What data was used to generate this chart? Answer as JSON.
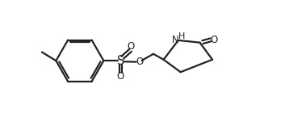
{
  "bg_color": "#ffffff",
  "line_color": "#222222",
  "line_width": 1.6,
  "font_size": 8.5,
  "figsize": [
    3.58,
    1.56
  ],
  "dpi": 100,
  "xlim": [
    0,
    10.5
  ],
  "ylim": [
    0,
    5.5
  ]
}
